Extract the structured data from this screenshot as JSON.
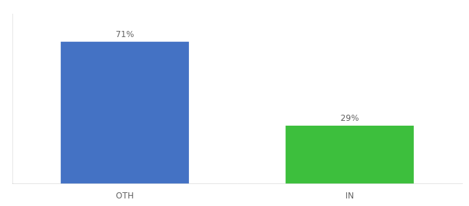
{
  "chart_data": {
    "type": "bar",
    "categories": [
      "OTH",
      "IN"
    ],
    "values": [
      71,
      29
    ],
    "value_labels": [
      "71%",
      "29%"
    ],
    "colors": [
      "#4472c4",
      "#3dbf3d"
    ],
    "ylim": [
      0,
      85
    ],
    "grid": false,
    "tick_labels": "x",
    "data_labels": true
  }
}
